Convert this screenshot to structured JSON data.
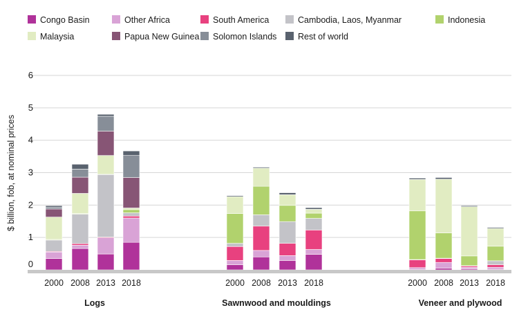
{
  "chart_data": {
    "type": "bar",
    "stacked": true,
    "ylabel": "$ billion, fob, at nominal prices",
    "ylim": [
      0,
      6
    ],
    "yticks": [
      "0",
      "1",
      "2",
      "3",
      "4",
      "5",
      "6"
    ],
    "grid": "horizontal",
    "legend_position": "top",
    "groups": [
      {
        "label": "Logs",
        "categories": [
          "2000",
          "2008",
          "2013",
          "2018"
        ]
      },
      {
        "label": "Sawnwood and mouldings",
        "categories": [
          "2000",
          "2008",
          "2013",
          "2018"
        ]
      },
      {
        "label": "Veneer and plywood",
        "categories": [
          "2000",
          "2008",
          "2013",
          "2018"
        ]
      }
    ],
    "series": [
      {
        "name": "Congo Basin",
        "color": "#b0329a",
        "values": [
          [
            0.35,
            0.66,
            0.49,
            0.85
          ],
          [
            0.16,
            0.4,
            0.29,
            0.48
          ],
          [
            0.02,
            0.05,
            0.03,
            0.02
          ]
        ]
      },
      {
        "name": "Other Africa",
        "color": "#d9a3d6",
        "values": [
          [
            0.2,
            0.1,
            0.5,
            0.75
          ],
          [
            0.13,
            0.2,
            0.15,
            0.15
          ],
          [
            0.05,
            0.18,
            0.05,
            0.06
          ]
        ]
      },
      {
        "name": "South America",
        "color": "#e8417f",
        "values": [
          [
            0.02,
            0.05,
            0.02,
            0.06
          ],
          [
            0.43,
            0.75,
            0.38,
            0.6
          ],
          [
            0.24,
            0.12,
            0.04,
            0.08
          ]
        ]
      },
      {
        "name": "Cambodia, Laos, Myanmar",
        "color": "#c3c3c8",
        "values": [
          [
            0.35,
            0.91,
            1.93,
            0.1
          ],
          [
            0.1,
            0.35,
            0.67,
            0.36
          ],
          [
            0.01,
            0.01,
            0.01,
            0.12
          ]
        ]
      },
      {
        "name": "Indonesia",
        "color": "#b1d26d",
        "values": [
          [
            0.02,
            0.02,
            0.02,
            0.1
          ],
          [
            0.92,
            0.88,
            0.5,
            0.16
          ],
          [
            1.5,
            0.78,
            0.3,
            0.45
          ]
        ]
      },
      {
        "name": "Malaysia",
        "color": "#e1ecc2",
        "values": [
          [
            0.69,
            0.62,
            0.57,
            0.05
          ],
          [
            0.52,
            0.56,
            0.33,
            0.12
          ],
          [
            0.97,
            1.66,
            1.52,
            0.55
          ]
        ]
      },
      {
        "name": "Papua New Guinea",
        "color": "#875575",
        "values": [
          [
            0.25,
            0.5,
            0.75,
            0.94
          ],
          [
            0,
            0,
            0,
            0
          ],
          [
            0,
            0,
            0,
            0
          ]
        ]
      },
      {
        "name": "Solomon Islands",
        "color": "#878e98",
        "values": [
          [
            0.05,
            0.25,
            0.46,
            0.68
          ],
          [
            0,
            0,
            0,
            0
          ],
          [
            0,
            0,
            0,
            0
          ]
        ]
      },
      {
        "name": "Rest of world",
        "color": "#59626e",
        "values": [
          [
            0.05,
            0.15,
            0.06,
            0.14
          ],
          [
            0.03,
            0.03,
            0.06,
            0.05
          ],
          [
            0.04,
            0.05,
            0.03,
            0.03
          ]
        ]
      }
    ]
  }
}
